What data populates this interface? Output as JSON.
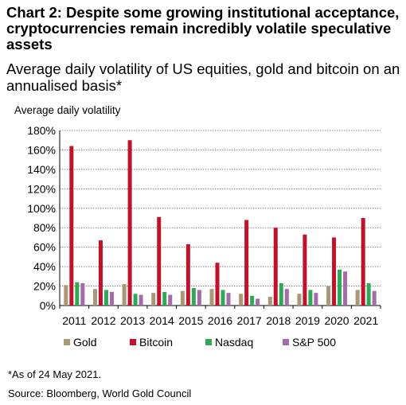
{
  "title": "Chart 2: Despite some growing institutional acceptance, cryptocurrencies remain incredibly volatile speculative assets",
  "subtitle": "Average daily volatility of US equities, gold and bitcoin on an annualised basis*",
  "footnote": "*As of 24 May 2021.",
  "source": "Source: Bloomberg, World Gold Council",
  "chart_data": {
    "type": "bar",
    "ylabel": "Average daily volatility",
    "xlabel": "",
    "ylim": [
      0,
      180
    ],
    "yticks": [
      0,
      20,
      40,
      60,
      80,
      100,
      120,
      140,
      160,
      180
    ],
    "ytick_labels": [
      "0%",
      "20%",
      "40%",
      "60%",
      "80%",
      "100%",
      "120%",
      "140%",
      "160%",
      "180%"
    ],
    "grid": "horizontal dotted",
    "legend_position": "bottom",
    "categories": [
      "2011",
      "2012",
      "2013",
      "2014",
      "2015",
      "2016",
      "2017",
      "2018",
      "2019",
      "2020",
      "2021"
    ],
    "series": [
      {
        "name": "Gold",
        "color": "#a99777",
        "values": [
          21,
          17,
          22,
          13,
          15,
          17,
          12,
          9,
          12,
          20,
          16
        ]
      },
      {
        "name": "Bitcoin",
        "color": "#c0122a",
        "values": [
          164,
          67,
          170,
          91,
          63,
          44,
          88,
          80,
          73,
          70,
          90
        ]
      },
      {
        "name": "Nasdaq",
        "color": "#2fa957",
        "values": [
          24,
          16,
          12,
          14,
          18,
          16,
          10,
          23,
          16,
          37,
          23
        ]
      },
      {
        "name": "S&P 500",
        "color": "#a56aa8",
        "values": [
          23,
          14,
          11,
          11,
          16,
          13,
          7,
          17,
          13,
          35,
          15
        ]
      }
    ]
  }
}
